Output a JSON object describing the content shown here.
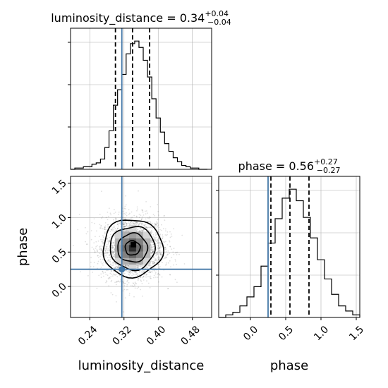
{
  "chart_data": [
    {
      "type": "histogram",
      "panel": "top-left",
      "title": "luminosity_distance",
      "title_value": "0.34",
      "title_upper": "+0.04",
      "title_lower": "−0.04",
      "xlim": [
        0.195,
        0.525
      ],
      "ylim": [
        0,
        1.0
      ],
      "bins": [
        [
          0.195,
          0.0
        ],
        [
          0.205,
          0.01
        ],
        [
          0.215,
          0.01
        ],
        [
          0.225,
          0.02
        ],
        [
          0.235,
          0.02
        ],
        [
          0.245,
          0.04
        ],
        [
          0.255,
          0.05
        ],
        [
          0.265,
          0.08
        ],
        [
          0.275,
          0.17
        ],
        [
          0.285,
          0.3
        ],
        [
          0.295,
          0.5
        ],
        [
          0.305,
          0.62
        ],
        [
          0.315,
          0.74
        ],
        [
          0.325,
          0.9
        ],
        [
          0.335,
          0.98
        ],
        [
          0.345,
          1.0
        ],
        [
          0.355,
          0.95
        ],
        [
          0.365,
          0.85
        ],
        [
          0.375,
          0.72
        ],
        [
          0.385,
          0.55
        ],
        [
          0.395,
          0.4
        ],
        [
          0.405,
          0.29
        ],
        [
          0.415,
          0.2
        ],
        [
          0.425,
          0.14
        ],
        [
          0.435,
          0.09
        ],
        [
          0.445,
          0.06
        ],
        [
          0.455,
          0.03
        ],
        [
          0.465,
          0.02
        ],
        [
          0.475,
          0.01
        ],
        [
          0.485,
          0.01
        ],
        [
          0.495,
          0.0
        ],
        [
          0.505,
          0.0
        ]
      ],
      "quantiles": [
        0.3,
        0.34,
        0.38
      ],
      "truth": 0.315,
      "grid": true
    },
    {
      "type": "histogram",
      "panel": "bottom-right",
      "title": "phase",
      "title_value": "0.56",
      "title_upper": "+0.27",
      "title_lower": "−0.27",
      "xlim": [
        -0.45,
        1.55
      ],
      "ylim": [
        0,
        1.0
      ],
      "xticks": [
        "0.0",
        "0.5",
        "1.0",
        "1.5"
      ],
      "xlabel": "phase",
      "bins": [
        [
          -0.45,
          0.0
        ],
        [
          -0.35,
          0.02
        ],
        [
          -0.25,
          0.04
        ],
        [
          -0.15,
          0.09
        ],
        [
          -0.05,
          0.16
        ],
        [
          0.05,
          0.24
        ],
        [
          0.15,
          0.4
        ],
        [
          0.25,
          0.58
        ],
        [
          0.35,
          0.77
        ],
        [
          0.45,
          0.93
        ],
        [
          0.55,
          1.0
        ],
        [
          0.65,
          0.91
        ],
        [
          0.75,
          0.78
        ],
        [
          0.85,
          0.62
        ],
        [
          0.95,
          0.45
        ],
        [
          1.05,
          0.3
        ],
        [
          1.15,
          0.18
        ],
        [
          1.25,
          0.09
        ],
        [
          1.35,
          0.05
        ],
        [
          1.45,
          0.02
        ]
      ],
      "quantiles": [
        0.29,
        0.56,
        0.83
      ],
      "truth": 0.25,
      "grid": true
    },
    {
      "type": "scatter-contour",
      "panel": "bottom-left",
      "xlabel": "luminosity_distance",
      "ylabel": "phase",
      "xlim": [
        0.195,
        0.525
      ],
      "ylim": [
        -0.45,
        1.6
      ],
      "xticks": [
        "0.24",
        "0.32",
        "0.40",
        "0.48"
      ],
      "yticks": [
        "0.0",
        "0.5",
        "1.0",
        "1.5"
      ],
      "center": [
        0.34,
        0.56
      ],
      "spread": [
        0.035,
        0.22
      ],
      "contour_levels": [
        0.5,
        1.0,
        1.5,
        2.0
      ],
      "truth": [
        0.315,
        0.25
      ],
      "grid": true
    }
  ],
  "colors": {
    "truth": "#4478a8",
    "hist": "#000000",
    "grid": "#b0b0b0",
    "points": "#000000"
  }
}
